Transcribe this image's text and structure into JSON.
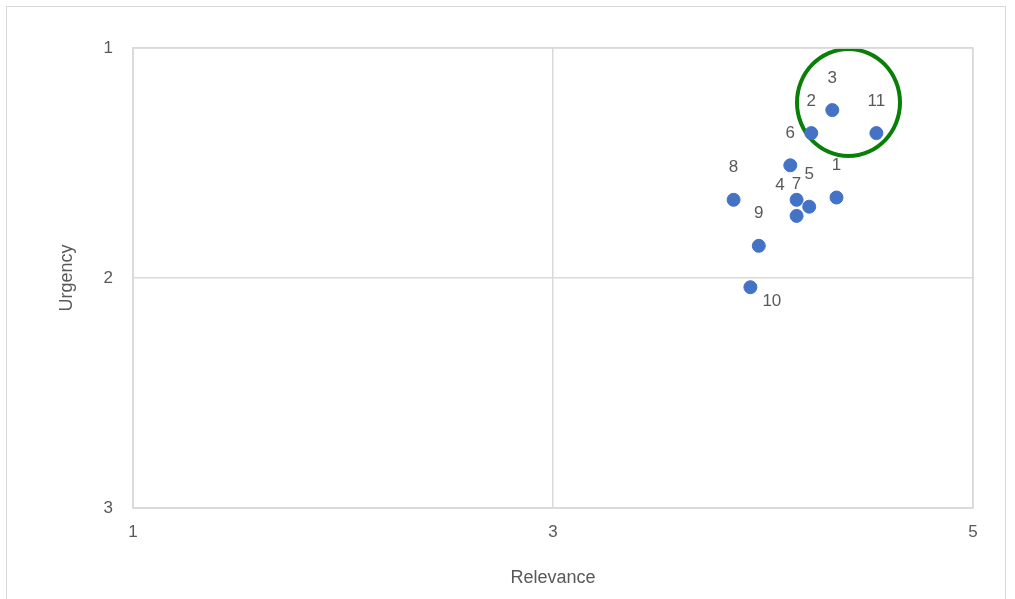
{
  "chart_data": {
    "type": "scatter",
    "xlabel": "Relevance",
    "ylabel": "Urgency",
    "x": [
      4.35,
      4.23,
      4.33,
      4.16,
      4.22,
      4.13,
      4.16,
      3.86,
      3.98,
      3.94,
      4.54
    ],
    "values": [
      1.65,
      1.37,
      1.27,
      1.66,
      1.69,
      1.51,
      1.73,
      1.66,
      1.86,
      2.04,
      1.37
    ],
    "color": "#4472c4",
    "marker": "circle",
    "xlim": [
      1,
      5
    ],
    "xticks": [
      1,
      3,
      5
    ],
    "ylim": [
      3,
      1
    ],
    "yticks": [
      1,
      2,
      3
    ],
    "grid": true,
    "legend": false,
    "annotations": [
      {
        "text": "1",
        "x": 4.35,
        "y": 1.65
      },
      {
        "text": "2",
        "x": 4.23,
        "y": 1.37
      },
      {
        "text": "3",
        "x": 4.33,
        "y": 1.27
      },
      {
        "text": "4",
        "x": 4.16,
        "y": 1.66
      },
      {
        "text": "5",
        "x": 4.22,
        "y": 1.69
      },
      {
        "text": "6",
        "x": 4.13,
        "y": 1.51
      },
      {
        "text": "7",
        "x": 4.16,
        "y": 1.73
      },
      {
        "text": "8",
        "x": 3.86,
        "y": 1.66
      },
      {
        "text": "9",
        "x": 3.98,
        "y": 1.86
      },
      {
        "text": "10",
        "x": 3.94,
        "y": 2.04
      },
      {
        "text": "11",
        "x": 4.54,
        "y": 1.37
      }
    ]
  }
}
